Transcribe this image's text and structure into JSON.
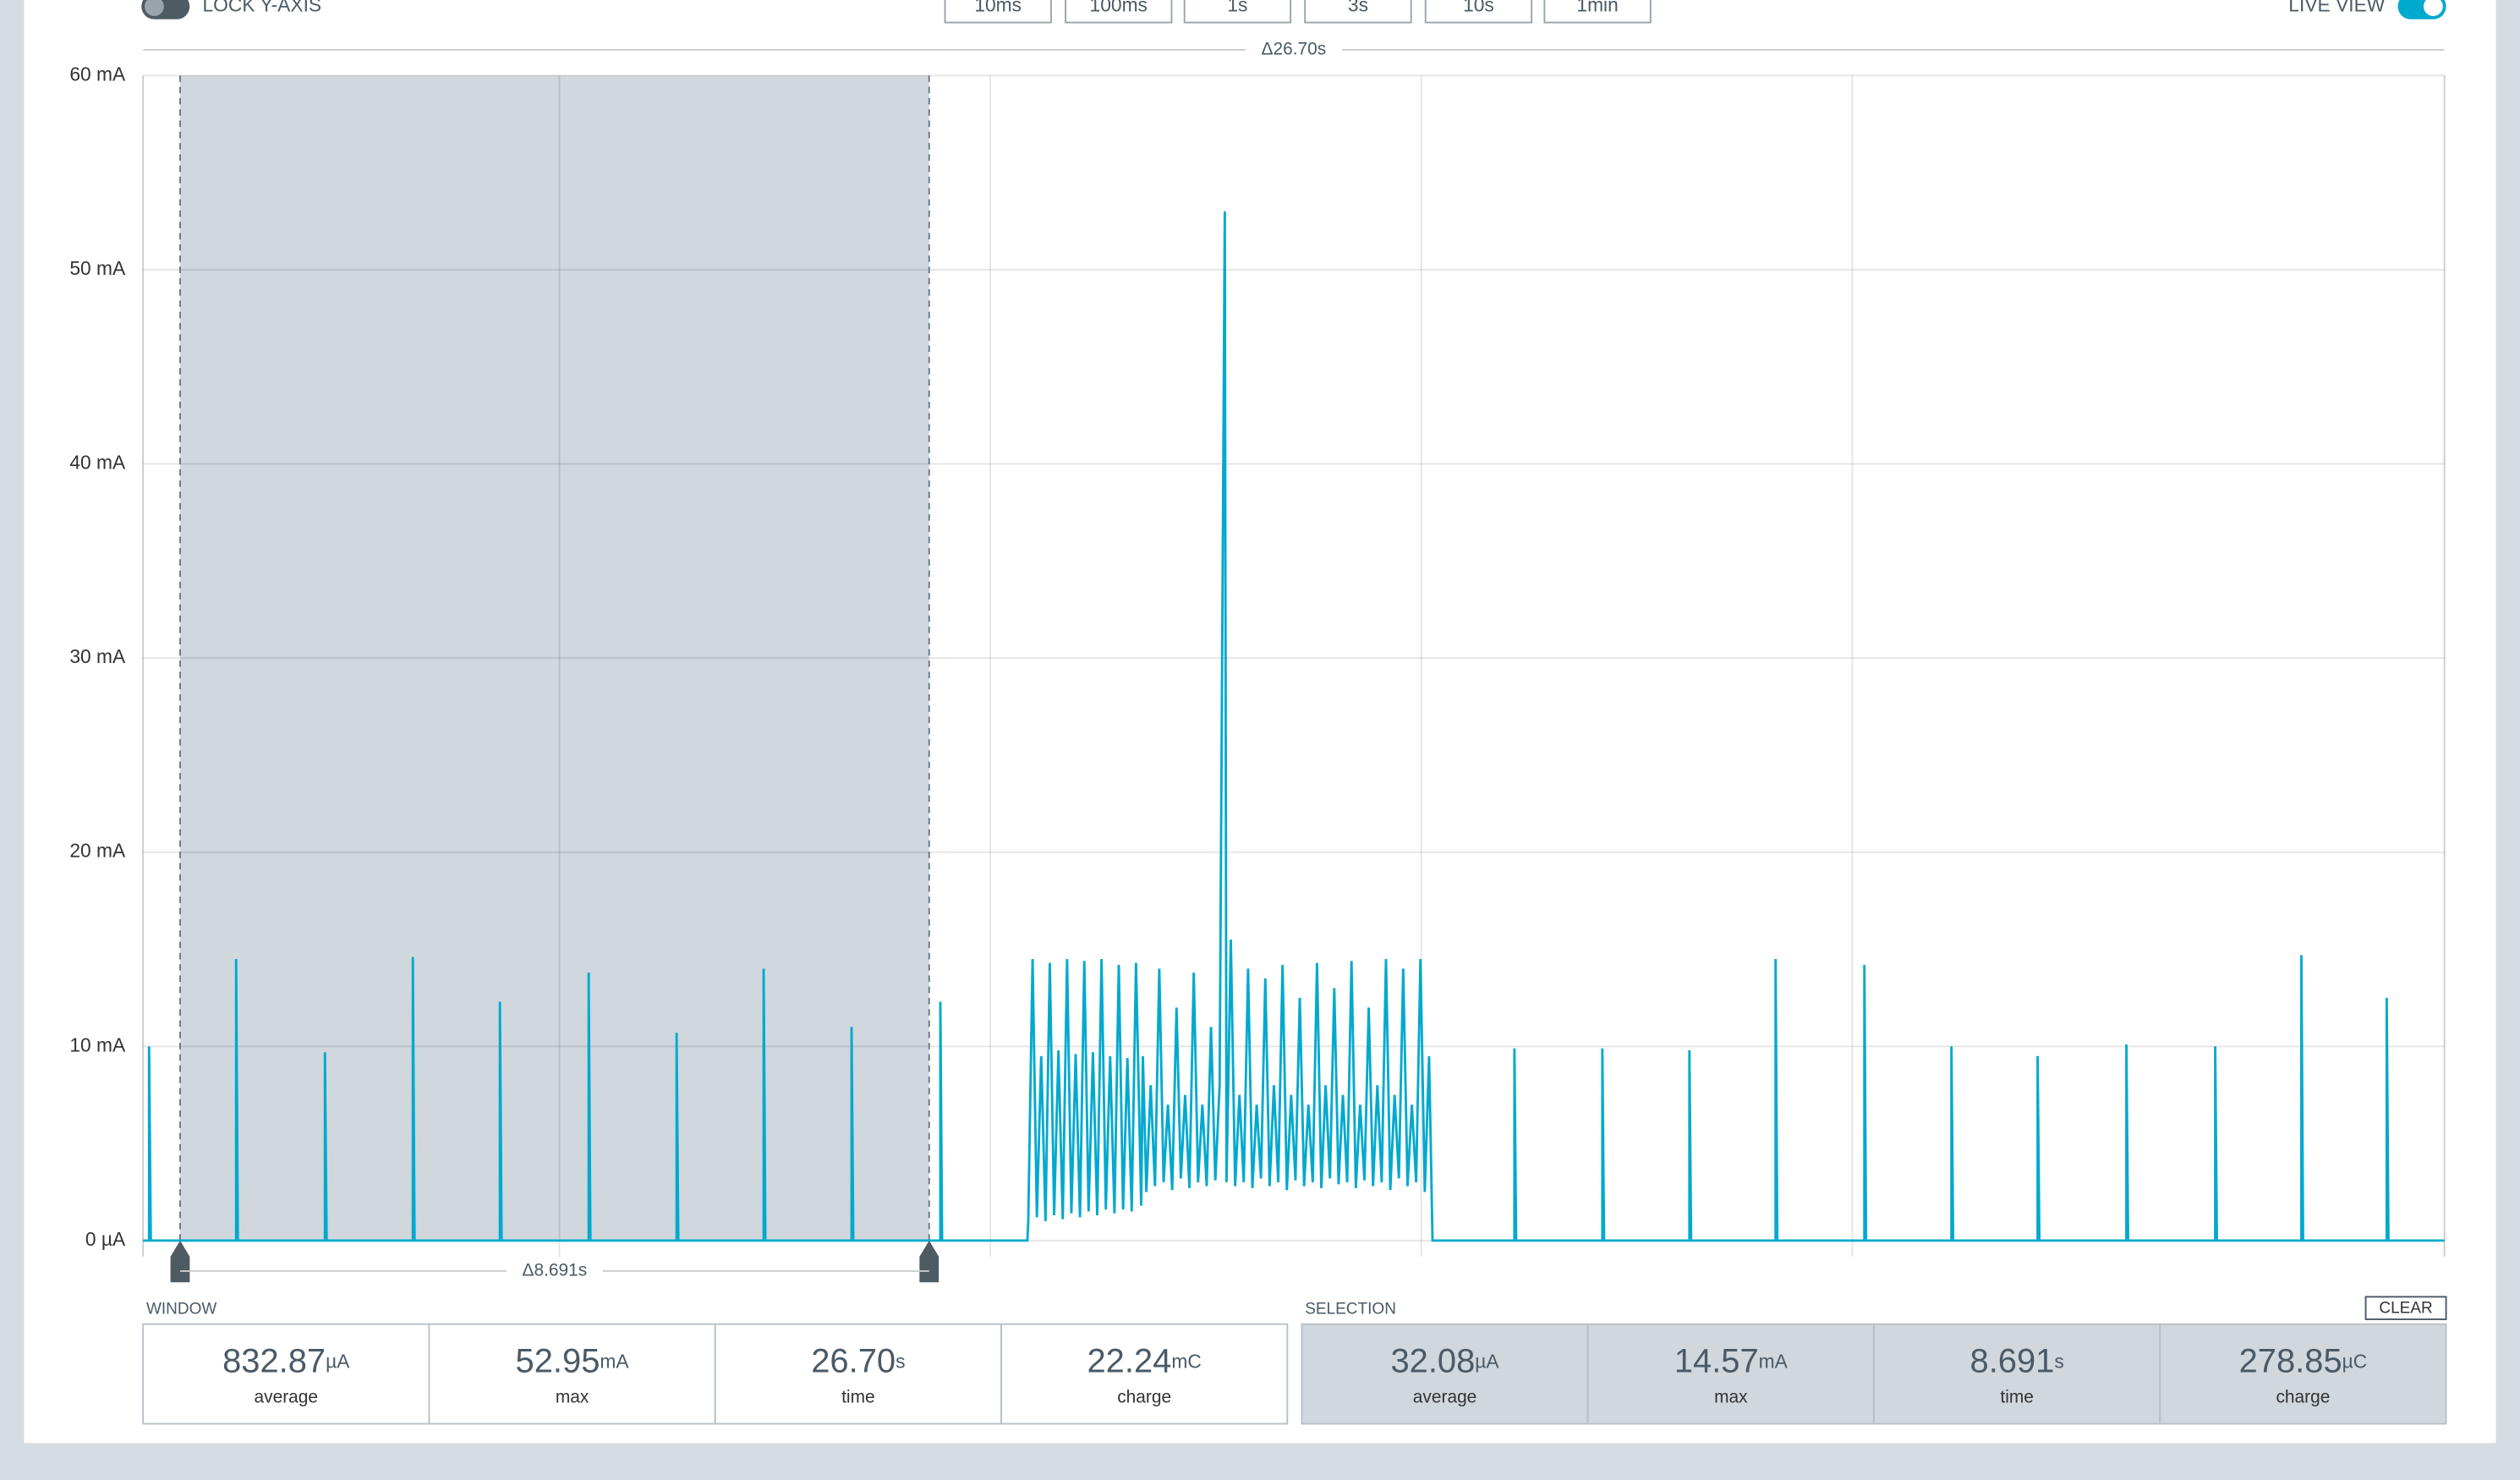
{
  "controls": {
    "lock_y_axis": "LOCK Y-AXIS",
    "live_view": "LIVE VIEW",
    "zoom_buttons": [
      "10ms",
      "100ms",
      "1s",
      "3s",
      "10s",
      "1min"
    ],
    "clear": "CLEAR"
  },
  "chart_data": {
    "type": "line",
    "color": "#00a9ce",
    "window_delta": "Δ26.70s",
    "selection_delta": "Δ8.691s",
    "xlim": [
      0,
      26.7
    ],
    "ylim": [
      0,
      60
    ],
    "xgrid": [
      4.83,
      9.83,
      14.83,
      19.83
    ],
    "yticks": [
      {
        "value": 0,
        "label": "0 µA"
      },
      {
        "value": 10,
        "label": "10 mA"
      },
      {
        "value": 20,
        "label": "20 mA"
      },
      {
        "value": 30,
        "label": "30 mA"
      },
      {
        "value": 40,
        "label": "40 mA"
      },
      {
        "value": 50,
        "label": "50 mA"
      },
      {
        "value": 60,
        "label": "60 mA"
      }
    ],
    "grid": true,
    "selection_x": [
      0.43,
      9.12
    ],
    "x": [
      0,
      0.07,
      0.07,
      0.09,
      1.08,
      1.08,
      1.1,
      2.11,
      2.11,
      2.13,
      3.13,
      3.13,
      3.15,
      4.14,
      4.14,
      4.16,
      5.17,
      5.17,
      5.19,
      6.19,
      6.19,
      6.21,
      7.2,
      7.2,
      7.22,
      8.22,
      8.22,
      8.24,
      9.25,
      9.25,
      9.27,
      10.26,
      10.27,
      10.32,
      10.37,
      10.42,
      10.47,
      10.52,
      10.57,
      10.62,
      10.67,
      10.72,
      10.77,
      10.82,
      10.87,
      10.92,
      10.97,
      11.02,
      11.07,
      11.12,
      11.17,
      11.22,
      11.27,
      11.32,
      11.37,
      11.42,
      11.47,
      11.52,
      11.58,
      11.6,
      11.64,
      11.69,
      11.74,
      11.79,
      11.84,
      11.89,
      11.94,
      11.99,
      12.04,
      12.09,
      12.14,
      12.19,
      12.24,
      12.29,
      12.34,
      12.39,
      12.44,
      12.49,
      12.55,
      12.57,
      12.62,
      12.67,
      12.72,
      12.77,
      12.82,
      12.87,
      12.92,
      12.97,
      13.02,
      13.07,
      13.12,
      13.17,
      13.22,
      13.27,
      13.32,
      13.37,
      13.42,
      13.47,
      13.52,
      13.57,
      13.62,
      13.67,
      13.72,
      13.77,
      13.82,
      13.87,
      13.92,
      13.97,
      14.02,
      14.07,
      14.12,
      14.17,
      14.22,
      14.27,
      14.32,
      14.37,
      14.42,
      14.47,
      14.52,
      14.57,
      14.62,
      14.67,
      14.72,
      14.77,
      14.82,
      14.87,
      14.92,
      14.96,
      15.91,
      15.91,
      15.93,
      16.93,
      16.93,
      16.95,
      17.94,
      17.94,
      17.96,
      18.94,
      18.94,
      18.96,
      19.97,
      19.97,
      19.99,
      20.98,
      20.98,
      21.0,
      21.98,
      21.98,
      22.0,
      23.01,
      23.01,
      23.03,
      24.04,
      24.04,
      24.06,
      25.04,
      25.04,
      25.06,
      26.03,
      26.03,
      26.05,
      26.7
    ],
    "values": [
      0,
      0,
      10,
      0,
      0,
      14.5,
      0,
      0,
      9.7,
      0,
      0,
      14.6,
      0,
      0,
      12.3,
      0,
      0,
      13.8,
      0,
      0,
      10.7,
      0,
      0,
      14,
      0,
      0,
      11,
      0,
      0,
      12.3,
      0,
      0,
      1,
      14.5,
      1.2,
      9.5,
      1,
      14.3,
      1.3,
      9.8,
      1.1,
      14.5,
      1.4,
      9.6,
      1.2,
      14.4,
      1.5,
      9.7,
      1.3,
      14.5,
      1.6,
      9.5,
      1.4,
      14.2,
      1.6,
      9.4,
      1.5,
      14.3,
      1.8,
      9.5,
      2.5,
      8,
      2.8,
      14,
      3,
      7,
      2.6,
      12,
      3.2,
      7.5,
      2.7,
      13.8,
      3,
      7,
      2.8,
      11,
      3.1,
      8,
      53,
      3,
      15.5,
      2.8,
      7.5,
      3,
      14,
      2.7,
      7,
      3.2,
      13.5,
      2.8,
      8,
      3,
      14.2,
      2.6,
      7.5,
      3.1,
      12.5,
      2.8,
      7,
      3,
      14.3,
      2.7,
      8,
      3.2,
      13,
      2.9,
      7.5,
      3,
      14.4,
      2.7,
      7,
      3.1,
      12,
      2.8,
      8,
      3,
      14.5,
      2.6,
      7.5,
      3.2,
      14,
      2.8,
      7,
      3,
      14.5,
      2.5,
      9.5,
      0,
      0,
      9.9,
      0,
      0,
      9.9,
      0,
      0,
      9.8,
      0,
      0,
      14.5,
      0,
      0,
      14.2,
      0,
      0,
      10,
      0,
      0,
      9.5,
      0,
      0,
      10.1,
      0,
      0,
      10,
      0,
      0,
      14.7,
      0,
      0,
      12.5,
      0,
      0
    ]
  },
  "window": {
    "label": "WINDOW",
    "stats": [
      {
        "value": "832.87",
        "unit": "µA",
        "label": "average"
      },
      {
        "value": "52.95",
        "unit": "mA",
        "label": "max"
      },
      {
        "value": "26.70",
        "unit": "s",
        "label": "time"
      },
      {
        "value": "22.24",
        "unit": "mC",
        "label": "charge"
      }
    ]
  },
  "selection": {
    "label": "SELECTION",
    "stats": [
      {
        "value": "32.08",
        "unit": "µA",
        "label": "average"
      },
      {
        "value": "14.57",
        "unit": "mA",
        "label": "max"
      },
      {
        "value": "8.691",
        "unit": "s",
        "label": "time"
      },
      {
        "value": "278.85",
        "unit": "µC",
        "label": "charge"
      }
    ]
  }
}
